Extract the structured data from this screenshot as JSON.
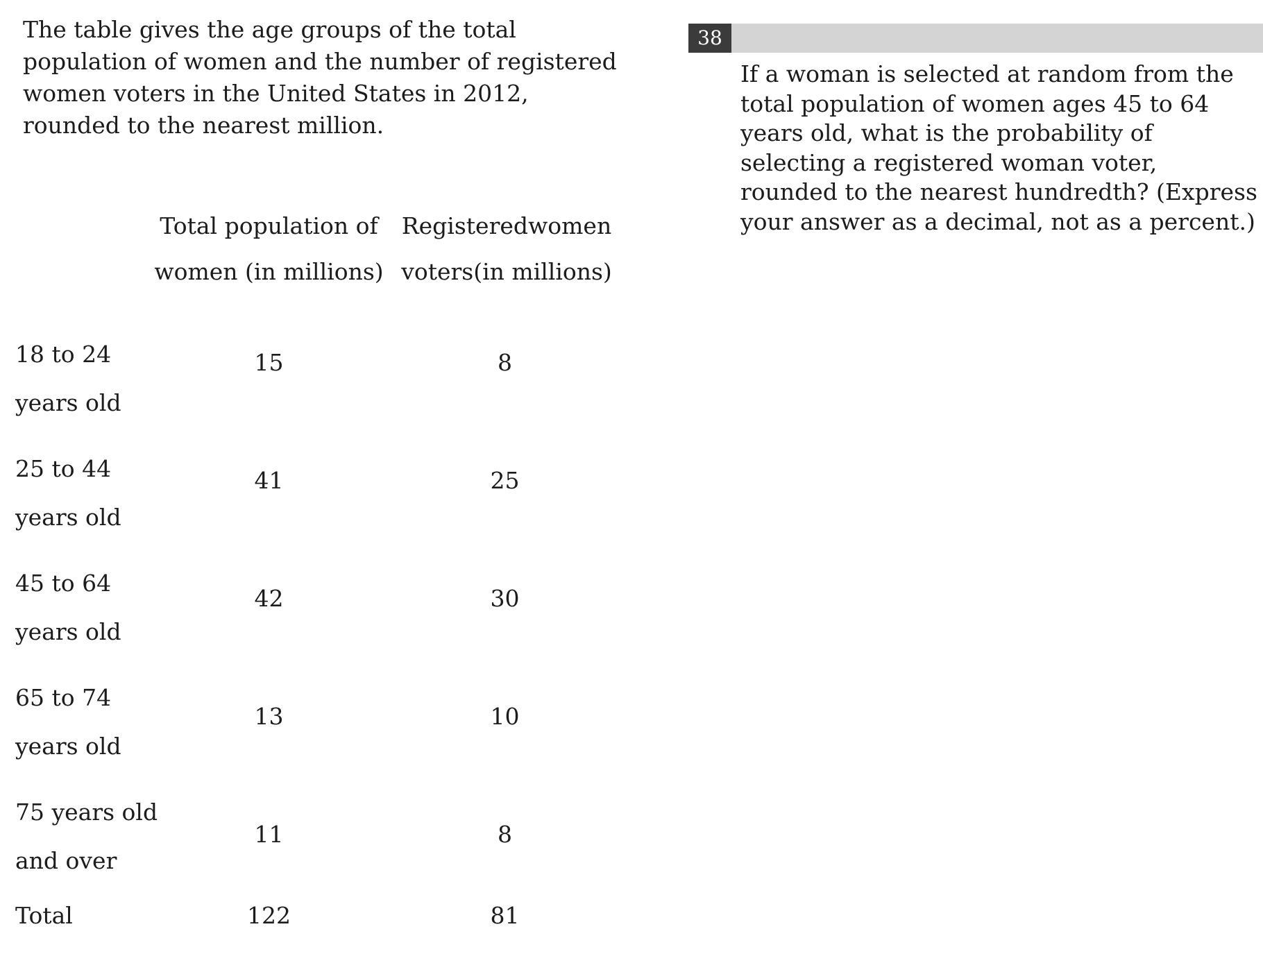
{
  "intro_text": "The table gives the age groups of the total population of women and the number of registered women voters in the United States in 2012, rounded to the nearest million.",
  "table": {
    "header_total": [
      "Total population of",
      "women (in millions)"
    ],
    "header_voters": [
      "Registeredwomen",
      "voters(in millions)"
    ],
    "rows": [
      {
        "label": [
          "18 to 24",
          "years old"
        ],
        "total": "15",
        "voters": "8"
      },
      {
        "label": [
          "25 to 44",
          "years old"
        ],
        "total": "41",
        "voters": "25"
      },
      {
        "label": [
          "45 to 64",
          "years old"
        ],
        "total": "42",
        "voters": "30"
      },
      {
        "label": [
          "65 to 74",
          "years old"
        ],
        "total": "13",
        "voters": "10"
      },
      {
        "label": [
          "75 years old",
          "and over"
        ],
        "total": "11",
        "voters": "8"
      }
    ],
    "total_row": {
      "label": "Total",
      "total": "122",
      "voters": "81"
    }
  },
  "question": {
    "number": "38",
    "text": "If a woman is selected at random from the total population of women ages 45 to 64 years old, what is the probability of selecting a registered woman voter, rounded to the nearest hundredth? (Express your answer as a decimal, not as a percent.)"
  }
}
